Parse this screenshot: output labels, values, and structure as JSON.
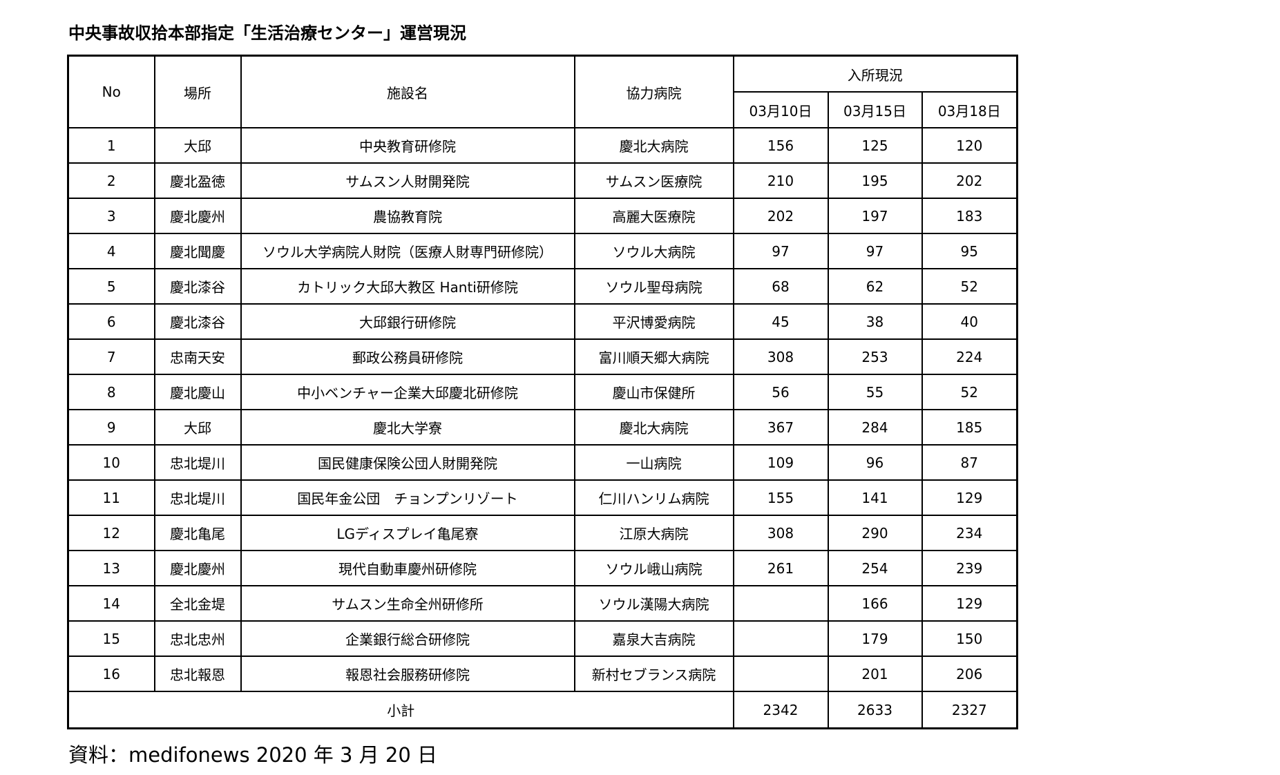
{
  "title": "中央事故収拾本部指定「生活治療センター」運営現況",
  "footer": "資料：medifonews 2020 年 3 月 20 日",
  "table": {
    "headers": {
      "no": "No",
      "location": "場所",
      "facility": "施設名",
      "hospital": "協力病院",
      "admission": "入所現況",
      "dates": [
        "03月10日",
        "03月15日",
        "03月18日"
      ]
    },
    "rows": [
      {
        "no": "1",
        "location": "大邱",
        "facility": "中央教育研修院",
        "hospital": "慶北大病院",
        "d1": "156",
        "d2": "125",
        "d3": "120"
      },
      {
        "no": "2",
        "location": "慶北盈徳",
        "facility": "サムスン人財開発院",
        "hospital": "サムスン医療院",
        "d1": "210",
        "d2": "195",
        "d3": "202"
      },
      {
        "no": "3",
        "location": "慶北慶州",
        "facility": "農協教育院",
        "hospital": "高麗大医療院",
        "d1": "202",
        "d2": "197",
        "d3": "183"
      },
      {
        "no": "4",
        "location": "慶北聞慶",
        "facility": "ソウル大学病院人財院（医療人財専門研修院）",
        "hospital": "ソウル大病院",
        "d1": "97",
        "d2": "97",
        "d3": "95"
      },
      {
        "no": "5",
        "location": "慶北漆谷",
        "facility": "カトリック大邱大教区 Hanti研修院",
        "hospital": "ソウル聖母病院",
        "d1": "68",
        "d2": "62",
        "d3": "52"
      },
      {
        "no": "6",
        "location": "慶北漆谷",
        "facility": "大邱銀行研修院",
        "hospital": "平沢博愛病院",
        "d1": "45",
        "d2": "38",
        "d3": "40"
      },
      {
        "no": "7",
        "location": "忠南天安",
        "facility": "郵政公務員研修院",
        "hospital": "富川順天郷大病院",
        "d1": "308",
        "d2": "253",
        "d3": "224"
      },
      {
        "no": "8",
        "location": "慶北慶山",
        "facility": "中小ベンチャー企業大邱慶北研修院",
        "hospital": "慶山市保健所",
        "d1": "56",
        "d2": "55",
        "d3": "52"
      },
      {
        "no": "9",
        "location": "大邱",
        "facility": "慶北大学寮",
        "hospital": "慶北大病院",
        "d1": "367",
        "d2": "284",
        "d3": "185"
      },
      {
        "no": "10",
        "location": "忠北堤川",
        "facility": "国民健康保険公団人財開発院",
        "hospital": "一山病院",
        "d1": "109",
        "d2": "96",
        "d3": "87"
      },
      {
        "no": "11",
        "location": "忠北堤川",
        "facility": "国民年金公団　チョンプンリゾート",
        "hospital": "仁川ハンリム病院",
        "d1": "155",
        "d2": "141",
        "d3": "129"
      },
      {
        "no": "12",
        "location": "慶北亀尾",
        "facility": "LGディスプレイ亀尾寮",
        "hospital": "江原大病院",
        "d1": "308",
        "d2": "290",
        "d3": "234"
      },
      {
        "no": "13",
        "location": "慶北慶州",
        "facility": "現代自動車慶州研修院",
        "hospital": "ソウル峨山病院",
        "d1": "261",
        "d2": "254",
        "d3": "239"
      },
      {
        "no": "14",
        "location": "全北金堤",
        "facility": "サムスン生命全州研修所",
        "hospital": "ソウル漢陽大病院",
        "d1": "",
        "d2": "166",
        "d3": "129"
      },
      {
        "no": "15",
        "location": "忠北忠州",
        "facility": "企業銀行総合研修院",
        "hospital": "嘉泉大吉病院",
        "d1": "",
        "d2": "179",
        "d3": "150"
      },
      {
        "no": "16",
        "location": "忠北報恩",
        "facility": "報恩社会服務研修院",
        "hospital": "新村セブランス病院",
        "d1": "",
        "d2": "201",
        "d3": "206"
      }
    ],
    "subtotal": {
      "label": "小計",
      "d1": "2342",
      "d2": "2633",
      "d3": "2327"
    }
  }
}
